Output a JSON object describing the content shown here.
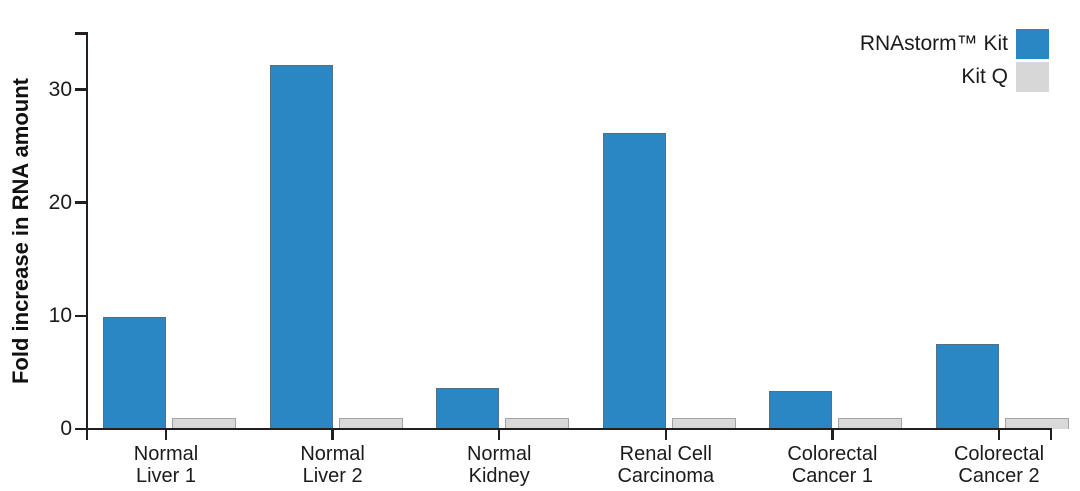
{
  "legend": [
    {
      "label": "RNAstorm™ Kit",
      "color": "#2b87c4"
    },
    {
      "label": "Kit Q",
      "color": "#d7d7d7"
    }
  ],
  "chart_data": {
    "type": "bar",
    "title": "",
    "xlabel": "",
    "ylabel": "Fold increase in RNA amount",
    "categories": [
      "Normal Liver 1",
      "Normal Liver 2",
      "Normal Kidney",
      "Renal Cell Carcinoma",
      "Colorectal Cancer 1",
      "Colorectal Cancer 2"
    ],
    "categories_two_line": [
      [
        "Normal",
        "Liver 1"
      ],
      [
        "Normal",
        "Liver 2"
      ],
      [
        "Normal",
        "Kidney"
      ],
      [
        "Renal Cell",
        "Carcinoma"
      ],
      [
        "Colorectal",
        "Cancer 1"
      ],
      [
        "Colorectal",
        "Cancer 2"
      ]
    ],
    "series": [
      {
        "name": "RNAstorm™ Kit",
        "color": "#2b87c4",
        "edge_color": "#54707f",
        "values": [
          9.9,
          32.2,
          3.6,
          26.2,
          3.4,
          7.5
        ]
      },
      {
        "name": "Kit Q",
        "color": "#d9d9d9",
        "edge_color": "#a3a3a3",
        "values": [
          1.0,
          1.0,
          1.0,
          1.0,
          1.0,
          1.0
        ]
      }
    ],
    "ylim": [
      0,
      35
    ],
    "yticks": [
      0,
      10,
      20,
      30
    ],
    "grid": false,
    "legend_position": "top-right",
    "axis_color": "#231f20"
  }
}
